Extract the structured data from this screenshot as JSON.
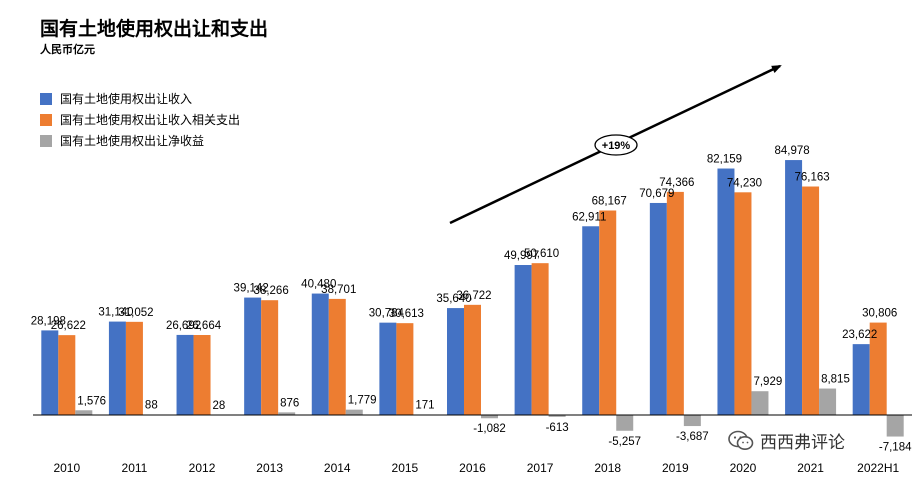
{
  "chart_data": {
    "type": "bar",
    "title": "国有土地使用权出让和支出",
    "subtitle": "人民币亿元",
    "categories": [
      "2010",
      "2011",
      "2012",
      "2013",
      "2014",
      "2015",
      "2016",
      "2017",
      "2018",
      "2019",
      "2020",
      "2021",
      "2022H1"
    ],
    "series": [
      {
        "name": "国有土地使用权出让收入",
        "color": "#4472C4",
        "values": [
          28198,
          31140,
          26692,
          39142,
          40480,
          30784,
          35640,
          49997,
          62911,
          70679,
          82159,
          84978,
          23622
        ],
        "labels": [
          "28,198",
          "31,140",
          "26,692",
          "39,142",
          "40,480",
          "30,784",
          "35,640",
          "49,997",
          "62,911",
          "70,679",
          "82,159",
          "84,978",
          "23,622"
        ]
      },
      {
        "name": "国有土地使用权出让收入相关支出",
        "color": "#ED7D31",
        "values": [
          26622,
          31052,
          26664,
          38266,
          38701,
          30613,
          36722,
          50610,
          68167,
          74366,
          74230,
          76163,
          30806
        ],
        "labels": [
          "26,622",
          "31,052",
          "26,664",
          "38,266",
          "38,701",
          "30,613",
          "36,722",
          "50,610",
          "68,167",
          "74,366",
          "74,230",
          "76,163",
          "30,806"
        ]
      },
      {
        "name": "国有土地使用权出让净收益",
        "color": "#A5A5A5",
        "values": [
          1576,
          88,
          28,
          876,
          1779,
          171,
          -1082,
          -613,
          -5257,
          -3687,
          7929,
          8815,
          -7184
        ],
        "labels": [
          "1,576",
          "88",
          "28",
          "876",
          "1,779",
          "171",
          "-1,082",
          "-613",
          "-5,257",
          "-3,687",
          "7,929",
          "8,815",
          "-7,184"
        ]
      }
    ],
    "ylim": [
      -8000,
      100000
    ],
    "annotation": "+19%",
    "grid": false,
    "legend_position": "top-left"
  },
  "watermark": {
    "text": "西西弗评论",
    "icon": "wechat-icon"
  }
}
